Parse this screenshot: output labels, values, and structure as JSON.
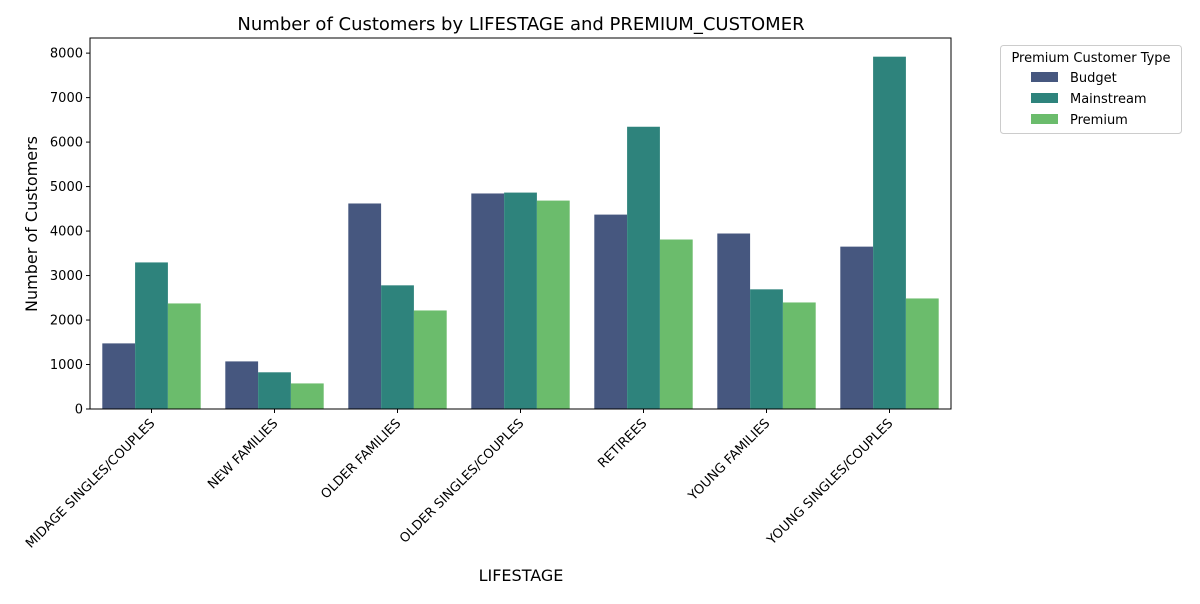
{
  "chart_data": {
    "type": "bar",
    "title": "Number of Customers by LIFESTAGE and PREMIUM_CUSTOMER",
    "xlabel": "LIFESTAGE",
    "ylabel": "Number of Customers",
    "ylim": [
      0,
      8340
    ],
    "yticks": [
      0,
      1000,
      2000,
      3000,
      4000,
      5000,
      6000,
      7000,
      8000
    ],
    "grid": false,
    "legend": {
      "title": "Premium Customer Type",
      "placement": "outside-top-right"
    },
    "categories": [
      "MIDAGE SINGLES/COUPLES",
      "NEW FAMILIES",
      "OLDER FAMILIES",
      "OLDER SINGLES/COUPLES",
      "RETIREES",
      "YOUNG FAMILIES",
      "YOUNG SINGLES/COUPLES"
    ],
    "series": [
      {
        "name": "Budget",
        "color": "#46577f",
        "values": [
          1475,
          1070,
          4620,
          4845,
          4370,
          3945,
          3650
        ]
      },
      {
        "name": "Mainstream",
        "color": "#2e837c",
        "values": [
          3295,
          825,
          2780,
          4865,
          6345,
          2690,
          7920
        ]
      },
      {
        "name": "Premium",
        "color": "#6bbc6c",
        "values": [
          2373,
          575,
          2215,
          4685,
          3810,
          2395,
          2485
        ]
      }
    ]
  }
}
